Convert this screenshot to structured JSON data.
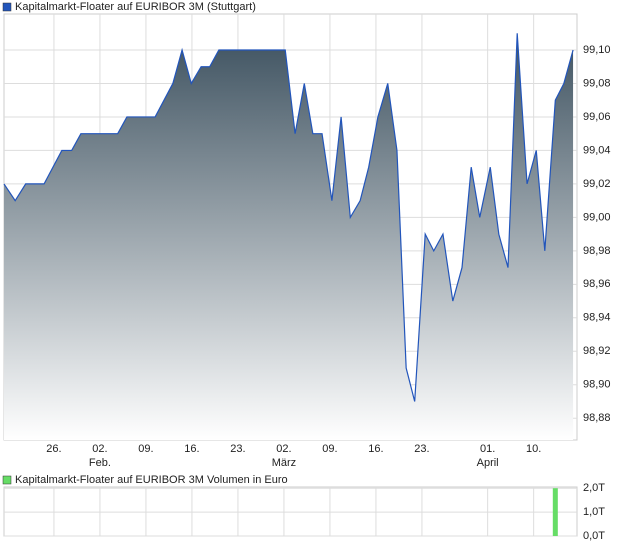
{
  "chart_data": [
    {
      "type": "area",
      "x": [
        -7.6,
        -5.9,
        -4.3,
        -1.5,
        1.2,
        2.7,
        4.1,
        9.7,
        11.1,
        15.4,
        18.1,
        19.5,
        20.9,
        22.4,
        23.7,
        25.1,
        35.2,
        36.7,
        38.1,
        39.4,
        40.8,
        42.3,
        43.7,
        45.1,
        46.6,
        47.9,
        49.3,
        50.8,
        52.2,
        53.6,
        54.9,
        56.5,
        57.8,
        59.2,
        60.7,
        62.1,
        63.5,
        64.8,
        66.4,
        67.7,
        69.1,
        70.5,
        72.0,
        73.4,
        74.7,
        76.3,
        77.6,
        79.0
      ],
      "series": [
        {
          "name": "Kapitalmarkt-Floater auf EURIBOR 3M (Stuttgart)",
          "color": "#2255bb",
          "values": [
            99.02,
            99.01,
            99.02,
            99.02,
            99.04,
            99.04,
            99.05,
            99.05,
            99.06,
            99.06,
            99.08,
            99.1,
            99.08,
            99.09,
            99.09,
            99.1,
            99.1,
            99.05,
            99.08,
            99.05,
            99.05,
            99.01,
            99.06,
            99.0,
            99.01,
            99.03,
            99.06,
            99.08,
            99.04,
            98.91,
            98.89,
            98.99,
            98.98,
            98.99,
            98.95,
            98.97,
            99.03,
            99.0,
            99.03,
            98.99,
            98.97,
            99.11,
            99.02,
            99.04,
            98.98,
            99.07,
            99.08,
            99.1
          ]
        }
      ],
      "xlim": [
        -7.6,
        79.6
      ],
      "ylim": [
        98.867,
        99.1215
      ],
      "xticks": [
        {
          "value": 0,
          "label": "26."
        },
        {
          "value": 7,
          "label": "02."
        },
        {
          "value": 14,
          "label": "09."
        },
        {
          "value": 21,
          "label": "16."
        },
        {
          "value": 28,
          "label": "23."
        },
        {
          "value": 35,
          "label": "02."
        },
        {
          "value": 42,
          "label": "09."
        },
        {
          "value": 49,
          "label": "16."
        },
        {
          "value": 56,
          "label": "23."
        },
        {
          "value": 66,
          "label": "01."
        },
        {
          "value": 73,
          "label": "10."
        }
      ],
      "month_labels": [
        {
          "value": 7,
          "label": "Feb."
        },
        {
          "value": 35,
          "label": "März"
        },
        {
          "value": 66,
          "label": "April"
        }
      ],
      "yticks": [
        {
          "value": 98.88,
          "label": "98,88"
        },
        {
          "value": 98.9,
          "label": "98,90"
        },
        {
          "value": 98.92,
          "label": "98,92"
        },
        {
          "value": 98.94,
          "label": "98,94"
        },
        {
          "value": 98.96,
          "label": "98,96"
        },
        {
          "value": 98.98,
          "label": "98,98"
        },
        {
          "value": 99.0,
          "label": "99,00"
        },
        {
          "value": 99.02,
          "label": "99,02"
        },
        {
          "value": 99.04,
          "label": "99,04"
        },
        {
          "value": 99.06,
          "label": "99,06"
        },
        {
          "value": 99.08,
          "label": "99,08"
        },
        {
          "value": 99.1,
          "label": "99,10"
        }
      ],
      "grid": true
    },
    {
      "type": "bar",
      "x": [
        76.3
      ],
      "series": [
        {
          "name": "Kapitalmarkt-Floater auf EURIBOR 3M Volumen in Euro",
          "color": "#66dd66",
          "values": [
            2.0
          ]
        }
      ],
      "xlim": [
        -7.6,
        79.6
      ],
      "ylim": [
        0,
        2.05
      ],
      "yticks": [
        {
          "value": 0,
          "label": "0,0T"
        },
        {
          "value": 1,
          "label": "1,0T"
        },
        {
          "value": 2,
          "label": "2,0T"
        }
      ],
      "grid": true
    }
  ]
}
